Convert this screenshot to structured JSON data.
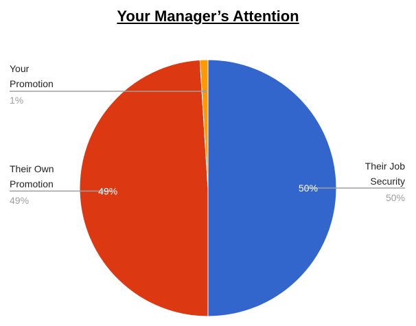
{
  "chart_data": {
    "type": "pie",
    "title": "Your Manager’s Attention",
    "start_angle_deg": 0,
    "direction": "clockwise",
    "slices": [
      {
        "label_lines": [
          "Their Job",
          "Security"
        ],
        "value": 50,
        "percent_label": "50%",
        "inner_label": "50%",
        "color": "#3366cc",
        "label_side": "right"
      },
      {
        "label_lines": [
          "Their Own",
          "Promotion"
        ],
        "value": 49,
        "percent_label": "49%",
        "inner_label": "49%",
        "color": "#dc3912",
        "label_side": "left"
      },
      {
        "label_lines": [
          "Your",
          "Promotion"
        ],
        "value": 1,
        "percent_label": "1%",
        "inner_label": "",
        "color": "#ff9900",
        "label_side": "left"
      }
    ],
    "legend_placement": "labeled",
    "label_color": "#222222",
    "percent_color": "#9e9e9e",
    "leader_color": "#9e9e9e",
    "slice_border_color": "#ffffff"
  }
}
